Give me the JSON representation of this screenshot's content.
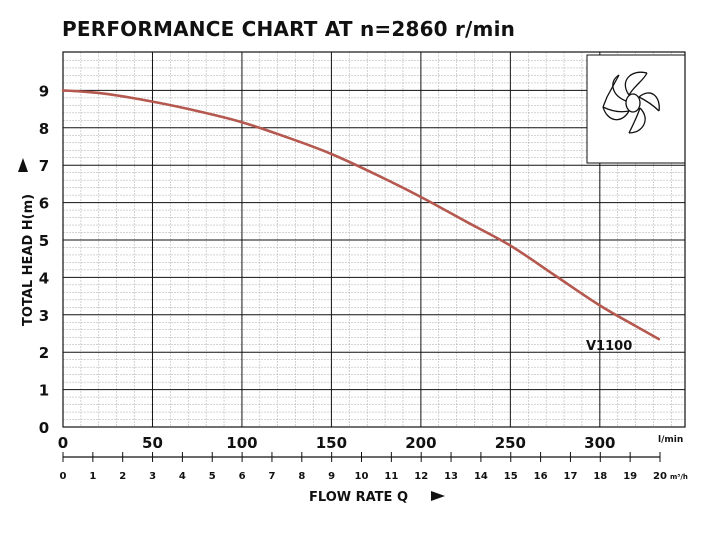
{
  "title": "PERFORMANCE CHART AT n=2860 r/min",
  "chart_data": {
    "type": "line",
    "title": "PERFORMANCE CHART AT n=2860 r/min",
    "xlabel": "FLOW RATE Q",
    "ylabel": "TOTAL HEAD H(m)",
    "x_unit": "l/min",
    "x2_unit": "m³/h",
    "xlim": [
      0,
      333
    ],
    "ylim": [
      0,
      10
    ],
    "grid": true,
    "x_ticks": [
      "0",
      "50",
      "100",
      "150",
      "200",
      "250",
      "300"
    ],
    "x2_ticks": [
      "0",
      "1",
      "2",
      "3",
      "4",
      "5",
      "6",
      "7",
      "8",
      "9",
      "10",
      "11",
      "12",
      "13",
      "14",
      "15",
      "16",
      "17",
      "18",
      "19",
      "20"
    ],
    "y_ticks": [
      "0",
      "1",
      "2",
      "3",
      "4",
      "5",
      "6",
      "7",
      "8",
      "9"
    ],
    "curve_color": "#b5584f",
    "series": [
      {
        "name": "V1100",
        "x": [
          0,
          10,
          25,
          50,
          75,
          100,
          125,
          150,
          175,
          200,
          225,
          250,
          275,
          300,
          320,
          333
        ],
        "y": [
          9.0,
          8.97,
          8.9,
          8.7,
          8.45,
          8.15,
          7.75,
          7.3,
          6.75,
          6.15,
          5.5,
          4.85,
          4.05,
          3.25,
          2.7,
          2.35
        ]
      }
    ]
  }
}
